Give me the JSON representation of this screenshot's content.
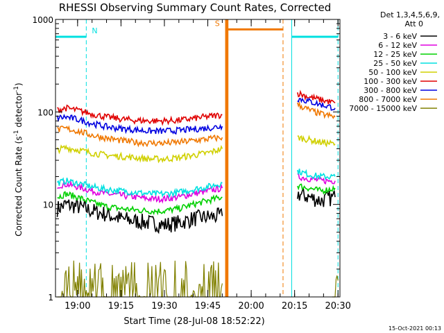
{
  "chart_data": {
    "type": "line",
    "title": "RHESSI Observing Summary Count Rates, Corrected",
    "xlabel": "Start Time (28-Jul-08 18:52:22)",
    "ylabel": "Corrected Count Rate (s",
    "ylabel_sup1": "-1",
    "ylabel_mid": " detector",
    "ylabel_sup2": "-1",
    "ylabel_end": ")",
    "y_scale": "log",
    "ylim": [
      1,
      1000
    ],
    "xlim": [
      "18:52:22",
      "20:30:40"
    ],
    "x_ticks": [
      "19:00",
      "19:15",
      "19:30",
      "19:45",
      "20:00",
      "20:15",
      "20:30"
    ],
    "y_ticks": [
      "1",
      "10",
      "100",
      "1000"
    ],
    "legend_header": [
      "Det 1,3,4,5,6,9,",
      "Att 0"
    ],
    "legend_position": "right",
    "footer": "15-Oct-2021 00:13",
    "series": [
      {
        "name": "3 - 6 keV",
        "color": "#000000",
        "segments": [
          [
            [
              "18:53",
              9
            ],
            [
              "18:56",
              10
            ],
            [
              "19:00",
              9.5
            ],
            [
              "19:05",
              8.5
            ],
            [
              "19:10",
              7.8
            ],
            [
              "19:15",
              7
            ],
            [
              "19:20",
              6.6
            ],
            [
              "19:25",
              6.3
            ],
            [
              "19:30",
              6
            ],
            [
              "19:35",
              6.3
            ],
            [
              "19:40",
              7
            ],
            [
              "19:45",
              7.3
            ],
            [
              "19:48",
              7.4
            ],
            [
              "19:50",
              7.5
            ]
          ],
          [
            [
              "20:16",
              13
            ],
            [
              "20:20",
              12
            ],
            [
              "20:24",
              11
            ],
            [
              "20:29",
              12
            ]
          ]
        ]
      },
      {
        "name": "6 - 12 keV",
        "color": "#e000e0",
        "segments": [
          [
            [
              "18:53",
              16
            ],
            [
              "18:56",
              16.5
            ],
            [
              "19:00",
              15.5
            ],
            [
              "19:05",
              14
            ],
            [
              "19:10",
              13
            ],
            [
              "19:15",
              12.5
            ],
            [
              "19:20",
              12
            ],
            [
              "19:25",
              11.5
            ],
            [
              "19:30",
              11.5
            ],
            [
              "19:35",
              12
            ],
            [
              "19:40",
              13
            ],
            [
              "19:45",
              14
            ],
            [
              "19:50",
              15
            ]
          ],
          [
            [
              "20:16",
              20
            ],
            [
              "20:20",
              19
            ],
            [
              "20:24",
              18
            ],
            [
              "20:29",
              18
            ]
          ]
        ]
      },
      {
        "name": "12 - 25 keV",
        "color": "#00d000",
        "segments": [
          [
            [
              "18:53",
              12
            ],
            [
              "18:56",
              13
            ],
            [
              "19:00",
              12
            ],
            [
              "19:05",
              10.5
            ],
            [
              "19:10",
              9.5
            ],
            [
              "19:15",
              9
            ],
            [
              "19:20",
              8.7
            ],
            [
              "19:25",
              8.5
            ],
            [
              "19:30",
              8.5
            ],
            [
              "19:35",
              9
            ],
            [
              "19:40",
              10
            ],
            [
              "19:45",
              11
            ],
            [
              "19:50",
              12
            ]
          ],
          [
            [
              "20:16",
              16
            ],
            [
              "20:20",
              15
            ],
            [
              "20:24",
              14
            ],
            [
              "20:29",
              15
            ]
          ]
        ]
      },
      {
        "name": "25 - 50 keV",
        "color": "#00e0e0",
        "segments": [
          [
            [
              "18:53",
              17
            ],
            [
              "18:56",
              18
            ],
            [
              "19:00",
              17
            ],
            [
              "19:05",
              15.5
            ],
            [
              "19:10",
              14.5
            ],
            [
              "19:15",
              14
            ],
            [
              "19:20",
              13.5
            ],
            [
              "19:25",
              13
            ],
            [
              "19:30",
              13
            ],
            [
              "19:35",
              13.5
            ],
            [
              "19:40",
              14.5
            ],
            [
              "19:45",
              15.5
            ],
            [
              "19:50",
              17
            ]
          ],
          [
            [
              "20:16",
              23
            ],
            [
              "20:20",
              21
            ],
            [
              "20:24",
              20
            ],
            [
              "20:29",
              20
            ]
          ]
        ]
      },
      {
        "name": "50 - 100 keV",
        "color": "#d0d000",
        "segments": [
          [
            [
              "18:53",
              39
            ],
            [
              "18:56",
              41
            ],
            [
              "19:00",
              39
            ],
            [
              "19:05",
              36
            ],
            [
              "19:10",
              34
            ],
            [
              "19:15",
              33
            ],
            [
              "19:20",
              32
            ],
            [
              "19:25",
              31
            ],
            [
              "19:30",
              31
            ],
            [
              "19:35",
              32
            ],
            [
              "19:40",
              34
            ],
            [
              "19:45",
              36
            ],
            [
              "19:50",
              40
            ]
          ],
          [
            [
              "20:16",
              53
            ],
            [
              "20:20",
              50
            ],
            [
              "20:24",
              47
            ],
            [
              "20:29",
              45
            ]
          ]
        ]
      },
      {
        "name": "100 - 300 keV",
        "color": "#e00000",
        "segments": [
          [
            [
              "18:53",
              105
            ],
            [
              "18:56",
              110
            ],
            [
              "19:00",
              104
            ],
            [
              "19:05",
              95
            ],
            [
              "19:10",
              88
            ],
            [
              "19:15",
              84
            ],
            [
              "19:20",
              81
            ],
            [
              "19:25",
              80
            ],
            [
              "19:30",
              80
            ],
            [
              "19:35",
              81
            ],
            [
              "19:40",
              85
            ],
            [
              "19:45",
              89
            ],
            [
              "19:50",
              93
            ]
          ],
          [
            [
              "20:16",
              160
            ],
            [
              "20:20",
              145
            ],
            [
              "20:24",
              135
            ],
            [
              "20:29",
              125
            ]
          ]
        ]
      },
      {
        "name": "300 - 800 keV",
        "color": "#0000e0",
        "segments": [
          [
            [
              "18:53",
              86
            ],
            [
              "18:56",
              88
            ],
            [
              "19:00",
              83
            ],
            [
              "19:05",
              75
            ],
            [
              "19:10",
              69
            ],
            [
              "19:15",
              66
            ],
            [
              "19:20",
              64
            ],
            [
              "19:25",
              62
            ],
            [
              "19:30",
              62
            ],
            [
              "19:35",
              63
            ],
            [
              "19:40",
              65
            ],
            [
              "19:45",
              67
            ],
            [
              "19:50",
              70
            ]
          ],
          [
            [
              "20:16",
              140
            ],
            [
              "20:20",
              130
            ],
            [
              "20:24",
              120
            ],
            [
              "20:29",
              110
            ]
          ]
        ]
      },
      {
        "name": "800 - 7000 keV",
        "color": "#f07800",
        "segments": [
          [
            [
              "18:53",
              64
            ],
            [
              "18:56",
              66
            ],
            [
              "19:00",
              62
            ],
            [
              "19:05",
              56
            ],
            [
              "19:10",
              52
            ],
            [
              "19:15",
              49
            ],
            [
              "19:20",
              47
            ],
            [
              "19:25",
              46
            ],
            [
              "19:30",
              46
            ],
            [
              "19:35",
              47
            ],
            [
              "19:40",
              49
            ],
            [
              "19:45",
              51
            ],
            [
              "19:50",
              53
            ]
          ],
          [
            [
              "20:16",
              120
            ],
            [
              "20:20",
              105
            ],
            [
              "20:24",
              95
            ],
            [
              "20:29",
              88
            ]
          ]
        ]
      },
      {
        "name": "7000 - 15000 keV",
        "color": "#808000",
        "segments": [
          [
            [
              "18:53",
              1.7
            ],
            [
              "18:56",
              2.3
            ],
            [
              "18:59",
              1.3
            ],
            [
              "19:02",
              2.4
            ],
            [
              "19:05",
              1.5
            ],
            [
              "19:08",
              1.2
            ],
            [
              "19:11",
              1.5
            ],
            [
              "19:14",
              1.1
            ],
            [
              "19:17",
              1
            ],
            [
              "19:23",
              1
            ],
            [
              "19:24",
              1.3
            ],
            [
              "19:26",
              1
            ],
            [
              "19:36",
              1
            ],
            [
              "19:37",
              2.3
            ],
            [
              "19:40",
              1.3
            ],
            [
              "19:43",
              2.4
            ],
            [
              "19:46",
              1.5
            ],
            [
              "19:49",
              2.2
            ],
            [
              "19:50",
              1.4
            ]
          ],
          [
            [
              "20:28",
              1
            ],
            [
              "20:29",
              2.3
            ],
            [
              "20:30",
              1.5
            ]
          ]
        ]
      }
    ]
  },
  "flag_bars": [
    {
      "label": "N",
      "color": "#00e0e0",
      "start": "18:52:22",
      "end": "19:03",
      "level": 650,
      "dashed_line": "19:03"
    },
    {
      "label": "S",
      "color": "#f07800",
      "start": "19:52",
      "end": "20:11",
      "level": 780,
      "dashed_line": "20:11"
    },
    {
      "label": "",
      "color": "#00e0e0",
      "start": "20:14",
      "end": "20:30",
      "level": 650,
      "dashed_line": "20:30"
    }
  ],
  "shaded_gap": {
    "start": "19:51",
    "end": "19:52",
    "color": "#f07800"
  }
}
